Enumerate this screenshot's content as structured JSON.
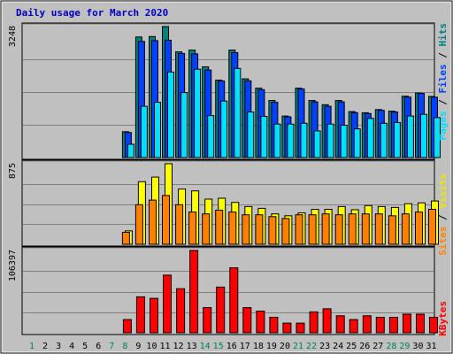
{
  "chart_data": {
    "type": "bar",
    "title": "Daily usage for March 2020",
    "grid": true,
    "days": [
      "1",
      "2",
      "3",
      "4",
      "5",
      "6",
      "7",
      "8",
      "9",
      "10",
      "11",
      "12",
      "13",
      "14",
      "15",
      "16",
      "17",
      "18",
      "19",
      "20",
      "21",
      "22",
      "23",
      "24",
      "25",
      "26",
      "27",
      "28",
      "29",
      "30",
      "31"
    ],
    "day_colors": [
      "#00805c",
      "#000000",
      "#000000",
      "#000000",
      "#000000",
      "#000000",
      "#00805c",
      "#00805c",
      "#000000",
      "#000000",
      "#000000",
      "#000000",
      "#000000",
      "#00805c",
      "#00805c",
      "#000000",
      "#000000",
      "#000000",
      "#000000",
      "#000000",
      "#00805c",
      "#00805c",
      "#000000",
      "#000000",
      "#000000",
      "#000000",
      "#000000",
      "#00805c",
      "#00805c",
      "#000000",
      "#000000"
    ],
    "panels": [
      {
        "id": "top",
        "ymax_label": "3248",
        "ymax": 3248,
        "series": [
          {
            "name": "Hits",
            "color": "#008080",
            "values": [
              0,
              0,
              0,
              0,
              0,
              0,
              0,
              640,
              2990,
              3000,
              3248,
              2620,
              2665,
              2250,
              1920,
              2665,
              1950,
              1720,
              1415,
              1030,
              1720,
              1415,
              1310,
              1415,
              1140,
              1110,
              1190,
              1150,
              1520,
              1600,
              1515
            ]
          },
          {
            "name": "Files",
            "color": "#0040ff",
            "values": [
              0,
              0,
              0,
              0,
              0,
              0,
              0,
              620,
              2880,
              2900,
              2910,
              2580,
              2570,
              2170,
              1900,
              2600,
              1900,
              1680,
              1370,
              1010,
              1700,
              1380,
              1270,
              1380,
              1115,
              1090,
              1170,
              1130,
              1500,
              1590,
              1495
            ]
          },
          {
            "name": "Pages",
            "color": "#00e0ff",
            "values": [
              0,
              0,
              0,
              0,
              0,
              0,
              0,
              330,
              1270,
              1370,
              2120,
              1610,
              2190,
              1040,
              1400,
              2210,
              1130,
              1020,
              830,
              830,
              850,
              660,
              830,
              800,
              710,
              970,
              850,
              870,
              1030,
              1070,
              990
            ]
          }
        ]
      },
      {
        "id": "middle",
        "ymax_label": "875",
        "ymax": 875,
        "series": [
          {
            "name": "Visits",
            "color": "#ffff00",
            "values": [
              0,
              0,
              0,
              0,
              0,
              0,
              0,
              145,
              680,
              730,
              875,
              600,
              580,
              490,
              500,
              455,
              410,
              390,
              330,
              310,
              340,
              380,
              380,
              410,
              375,
              420,
              410,
              400,
              440,
              450,
              470
            ]
          },
          {
            "name": "Sites",
            "color": "#ff8000",
            "values": [
              0,
              0,
              0,
              0,
              0,
              0,
              0,
              130,
              430,
              480,
              530,
              430,
              350,
              330,
              370,
              350,
              320,
              320,
              300,
              280,
              320,
              320,
              330,
              320,
              330,
              330,
              330,
              310,
              330,
              350,
              380
            ]
          }
        ]
      },
      {
        "id": "bottom",
        "ymax_label": "106397",
        "ymax": 106397,
        "series": [
          {
            "name": "KBytes",
            "color": "#ff0000",
            "values": [
              0,
              0,
              0,
              0,
              0,
              0,
              0,
              17000,
              46500,
              44500,
              74500,
              57000,
              106397,
              32500,
              59000,
              84000,
              32500,
              28000,
              20000,
              12500,
              12500,
              27000,
              31000,
              22000,
              17000,
              22000,
              20000,
              20000,
              24000,
              24000,
              20000
            ]
          }
        ]
      }
    ],
    "legend": [
      {
        "panel": "top",
        "items": [
          "Pages",
          "Files",
          "Hits"
        ],
        "colors": [
          "#00e0ff",
          "#0040ff",
          "#008080"
        ]
      },
      {
        "panel": "middle",
        "items": [
          "Sites",
          "Visits"
        ],
        "colors": [
          "#ff8000",
          "#e8e800"
        ]
      },
      {
        "panel": "bottom",
        "items": [
          "KBytes"
        ],
        "colors": [
          "#ff0000"
        ]
      }
    ]
  }
}
